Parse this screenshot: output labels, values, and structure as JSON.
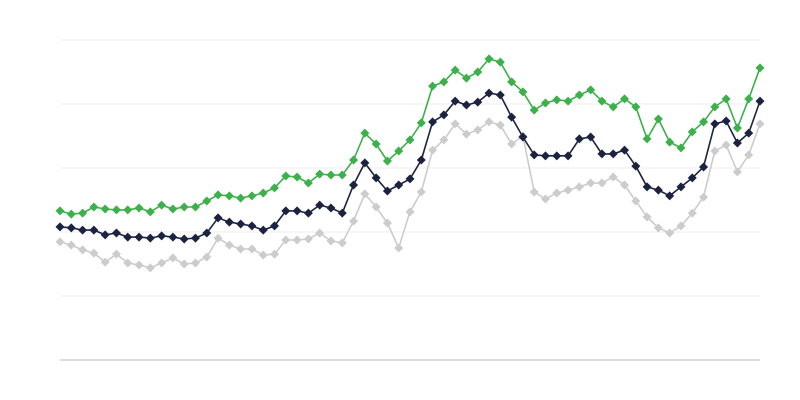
{
  "chart_data": {
    "type": "line",
    "title": "",
    "xlabel": "",
    "ylabel": "",
    "ylim": [
      0,
      100
    ],
    "grid": true,
    "gridlines": [
      20,
      40,
      60,
      80,
      100
    ],
    "marker": "diamond",
    "point_count": 63,
    "series": [
      {
        "color": "#cccccc",
        "values": [
          36.9,
          35.9,
          34.4,
          33.4,
          30.6,
          33.1,
          30.3,
          29.7,
          28.8,
          30.3,
          31.9,
          30.0,
          30.3,
          32.2,
          38.1,
          35.9,
          34.7,
          34.7,
          32.8,
          33.1,
          37.5,
          37.5,
          37.8,
          39.7,
          37.2,
          36.6,
          43.4,
          51.9,
          47.8,
          42.8,
          35.0,
          46.3,
          52.5,
          65.6,
          68.8,
          73.8,
          70.6,
          71.9,
          74.4,
          73.4,
          67.5,
          70.0,
          52.5,
          50.3,
          52.2,
          53.1,
          54.1,
          55.3,
          55.3,
          57.2,
          54.7,
          49.7,
          44.7,
          41.3,
          39.7,
          41.9,
          45.9,
          50.9,
          65.3,
          67.2,
          58.8,
          64.1,
          73.8
        ]
      },
      {
        "color": "#1b2340",
        "values": [
          41.6,
          41.3,
          40.6,
          40.6,
          39.1,
          39.7,
          38.4,
          38.4,
          38.1,
          38.8,
          38.4,
          37.8,
          38.1,
          39.7,
          44.4,
          43.1,
          42.5,
          41.9,
          40.6,
          41.9,
          46.6,
          46.6,
          45.9,
          48.4,
          47.5,
          45.9,
          54.7,
          61.6,
          56.9,
          52.8,
          54.7,
          56.6,
          62.5,
          74.4,
          76.6,
          80.9,
          79.7,
          80.6,
          83.4,
          82.8,
          75.9,
          69.7,
          64.1,
          63.8,
          63.8,
          63.8,
          69.1,
          69.7,
          64.4,
          64.4,
          65.6,
          60.6,
          54.1,
          53.1,
          51.3,
          54.1,
          56.9,
          60.3,
          73.8,
          74.7,
          67.8,
          70.9,
          80.9
        ]
      },
      {
        "color": "#3cb04a",
        "values": [
          46.6,
          45.6,
          45.9,
          47.8,
          47.2,
          46.9,
          46.9,
          47.5,
          46.3,
          48.4,
          47.2,
          47.8,
          47.8,
          49.7,
          51.6,
          51.3,
          50.6,
          51.3,
          52.2,
          53.8,
          57.5,
          57.2,
          55.3,
          58.1,
          57.8,
          57.8,
          62.5,
          70.9,
          67.5,
          62.2,
          65.3,
          68.8,
          74.1,
          85.6,
          86.9,
          90.6,
          88.1,
          90.0,
          94.1,
          93.1,
          86.9,
          83.8,
          78.1,
          80.3,
          81.3,
          80.9,
          82.8,
          84.4,
          80.9,
          79.1,
          81.6,
          79.1,
          69.1,
          75.3,
          68.1,
          66.3,
          71.3,
          74.4,
          79.1,
          81.6,
          72.5,
          81.6,
          91.3
        ]
      }
    ]
  }
}
